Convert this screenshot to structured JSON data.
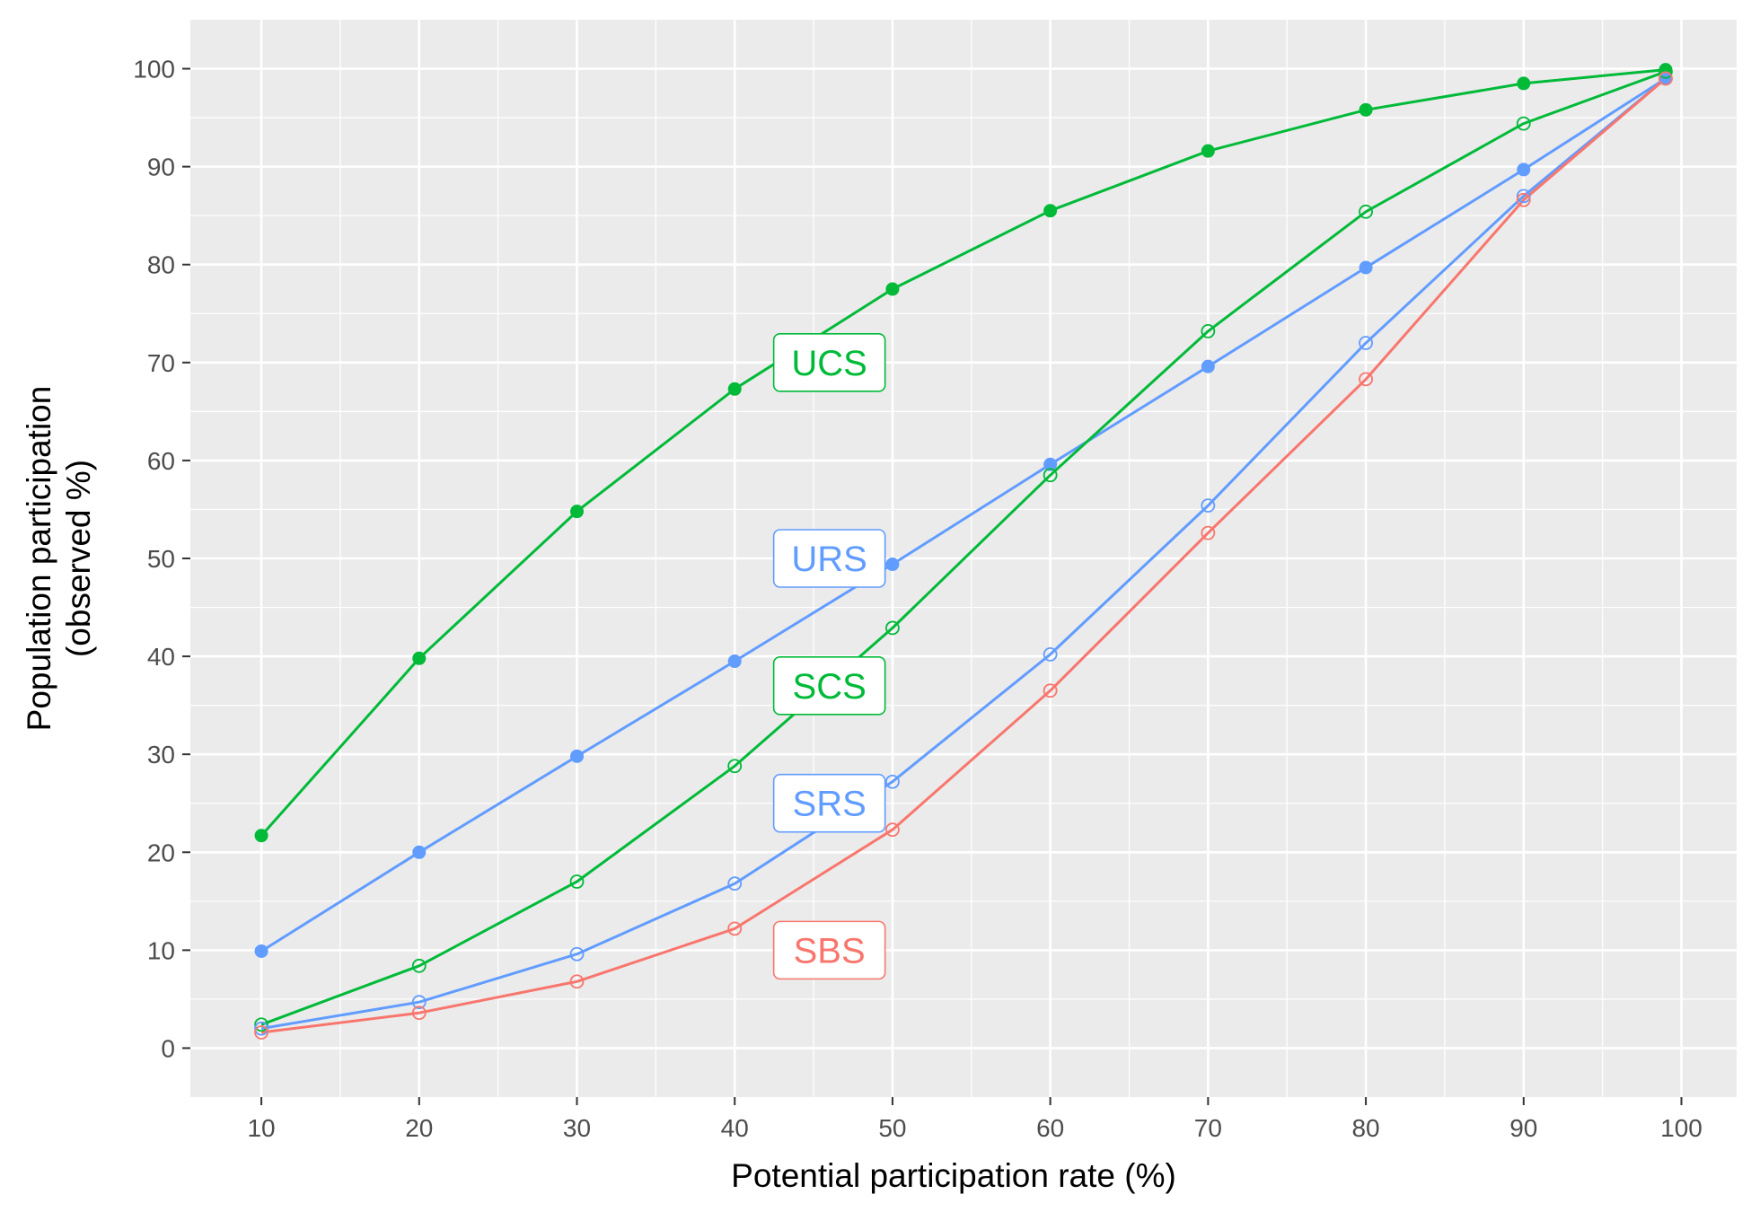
{
  "chart_data": {
    "type": "line",
    "xlabel": "Potential participation rate (%)",
    "ylabel": "Population participation\n(observed %)",
    "xlim": [
      5.5,
      103.5
    ],
    "ylim": [
      -5,
      105
    ],
    "xticks": [
      10,
      20,
      30,
      40,
      50,
      60,
      70,
      80,
      90,
      100
    ],
    "yticks": [
      0,
      10,
      20,
      30,
      40,
      50,
      60,
      70,
      80,
      90,
      100
    ],
    "grid": true,
    "legend": "none",
    "x": [
      10,
      20,
      30,
      40,
      50,
      60,
      70,
      80,
      90,
      99
    ],
    "series": [
      {
        "name": "UCS",
        "color": "#00BA38",
        "marker": "filled-circle",
        "values": [
          21.7,
          39.8,
          54.8,
          67.3,
          77.5,
          85.5,
          91.6,
          95.8,
          98.5,
          99.9
        ],
        "label_pos": [
          46,
          70
        ]
      },
      {
        "name": "URS",
        "color": "#619CFF",
        "marker": "filled-circle",
        "values": [
          9.9,
          20.0,
          29.8,
          39.5,
          49.4,
          59.6,
          69.6,
          79.7,
          89.7,
          99.0
        ],
        "label_pos": [
          46,
          50
        ]
      },
      {
        "name": "SCS",
        "color": "#00BA38",
        "marker": "open-circle",
        "values": [
          2.4,
          8.4,
          17.0,
          28.8,
          42.9,
          58.5,
          73.2,
          85.4,
          94.4,
          99.7
        ],
        "label_pos": [
          46,
          37
        ]
      },
      {
        "name": "SRS",
        "color": "#619CFF",
        "marker": "open-circle",
        "values": [
          2.0,
          4.7,
          9.6,
          16.8,
          27.2,
          40.2,
          55.4,
          72.0,
          87.0,
          99.0
        ],
        "label_pos": [
          46,
          25
        ]
      },
      {
        "name": "SBS",
        "color": "#F8766D",
        "marker": "open-circle",
        "values": [
          1.6,
          3.6,
          6.8,
          12.2,
          22.3,
          36.5,
          52.6,
          68.3,
          86.6,
          99.0
        ],
        "label_pos": [
          46,
          10
        ]
      }
    ]
  }
}
